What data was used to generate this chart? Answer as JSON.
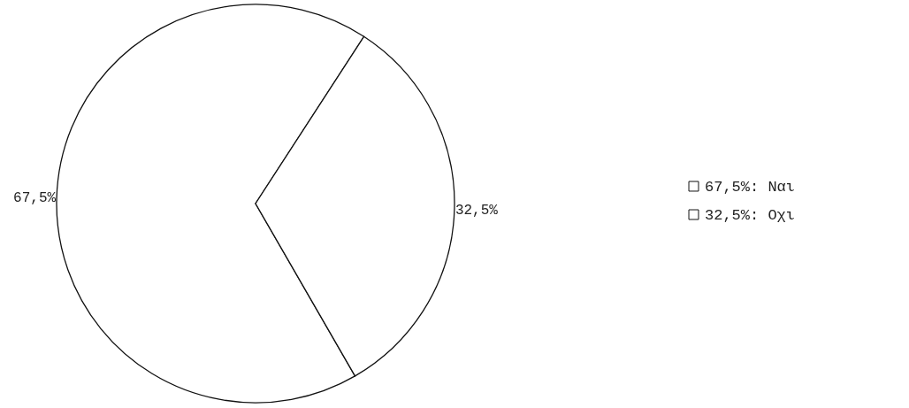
{
  "chart_data": {
    "type": "pie",
    "categories": [
      "Ναι",
      "Οχι"
    ],
    "values": [
      67.5,
      32.5
    ],
    "colors": [
      "#ffffff",
      "#ffffff"
    ],
    "value_labels": [
      "67,5%",
      "32,5%"
    ],
    "legend": "right"
  }
}
